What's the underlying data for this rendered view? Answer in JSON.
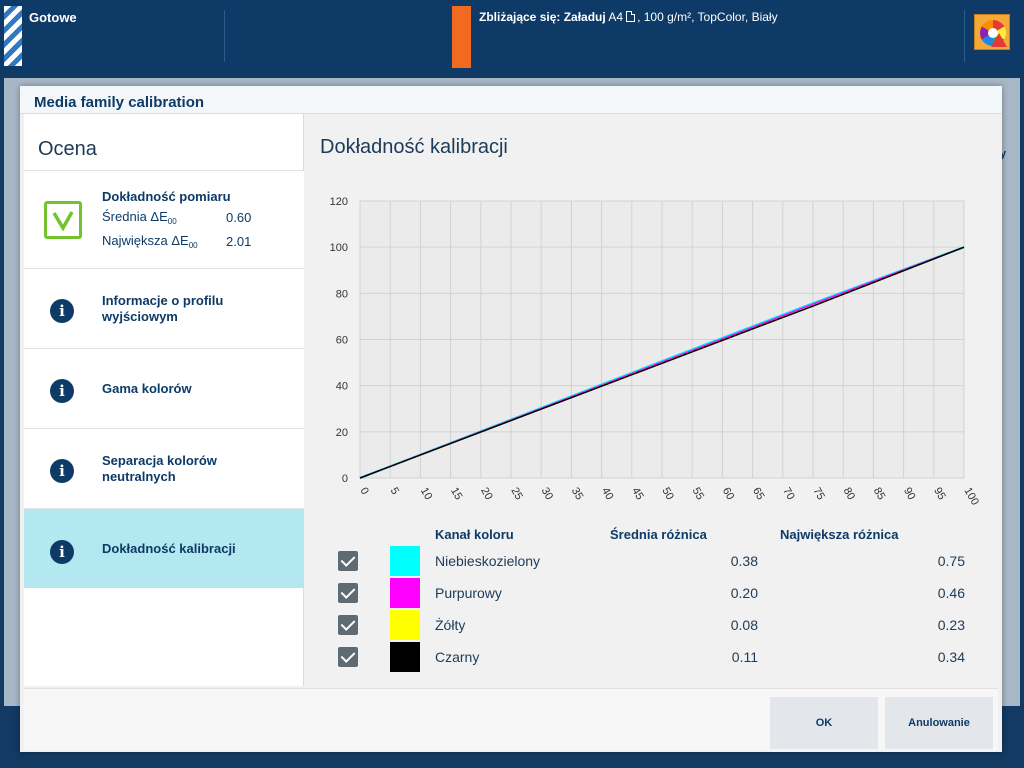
{
  "topbar": {
    "status": "Gotowe",
    "upcoming_label": "Zbliżające się: Załaduj",
    "upcoming_paper_size": "A4",
    "upcoming_details": ", 100 g/m², TopColor, Biały",
    "orange_color": "#f26a21",
    "wheel_icon": "color-wheel-warning-icon"
  },
  "dialog": {
    "title": "Media family calibration",
    "left_title": "Ocena",
    "measurement": {
      "title": "Dokładność pomiaru",
      "avg_label": "Średnia ΔE",
      "avg_sub": "00",
      "avg_value": "0.60",
      "max_label": "Największa ΔE",
      "max_sub": "00",
      "max_value": "2.01",
      "status_icon": "checkmark-icon"
    },
    "nav": [
      {
        "label": "Informacje o profilu wyjściowym",
        "icon": "info-icon"
      },
      {
        "label": "Gama kolorów",
        "icon": "info-icon"
      },
      {
        "label": "Separacja kolorów neutralnych",
        "icon": "info-icon"
      },
      {
        "label": "Dokładność kalibracji",
        "icon": "info-icon",
        "active": true
      }
    ],
    "content_title": "Dokładność kalibracji",
    "table": {
      "headers": [
        "Kanał koloru",
        "Średnia różnica",
        "Największa różnica"
      ],
      "rows": [
        {
          "name": "Niebieskozielony",
          "color": "#00ffff",
          "avg": "0.38",
          "max": "0.75",
          "checked": true
        },
        {
          "name": "Purpurowy",
          "color": "#ff00ff",
          "avg": "0.20",
          "max": "0.46",
          "checked": true
        },
        {
          "name": "Żółty",
          "color": "#ffff00",
          "avg": "0.08",
          "max": "0.23",
          "checked": true
        },
        {
          "name": "Czarny",
          "color": "#000000",
          "avg": "0.11",
          "max": "0.34",
          "checked": true
        }
      ]
    },
    "buttons": {
      "ok": "OK",
      "cancel": "Anulowanie"
    }
  },
  "chart_data": {
    "type": "line",
    "title": "",
    "xlabel": "",
    "ylabel": "",
    "xlim": [
      0,
      100
    ],
    "ylim": [
      0,
      120
    ],
    "xticks": [
      0,
      5,
      10,
      15,
      20,
      25,
      30,
      35,
      40,
      45,
      50,
      55,
      60,
      65,
      70,
      75,
      80,
      85,
      90,
      95,
      100
    ],
    "yticks": [
      0,
      20,
      40,
      60,
      80,
      100,
      120
    ],
    "grid": true,
    "series": [
      {
        "name": "Niebieskozielony",
        "color": "#00e5ff",
        "x": [
          0,
          25,
          50,
          75,
          100
        ],
        "y": [
          0,
          25.3,
          50.6,
          75.7,
          100
        ]
      },
      {
        "name": "Purpurowy",
        "color": "#ff00ff",
        "x": [
          0,
          25,
          50,
          75,
          100
        ],
        "y": [
          0,
          25.1,
          50.2,
          75.3,
          100
        ]
      },
      {
        "name": "Żółty",
        "color": "#e6e600",
        "x": [
          0,
          25,
          50,
          75,
          100
        ],
        "y": [
          0,
          24.9,
          49.8,
          74.6,
          100
        ]
      },
      {
        "name": "Czarny",
        "color": "#000000",
        "x": [
          0,
          25,
          50,
          75,
          100
        ],
        "y": [
          0,
          24.9,
          49.7,
          74.5,
          100
        ]
      }
    ]
  }
}
